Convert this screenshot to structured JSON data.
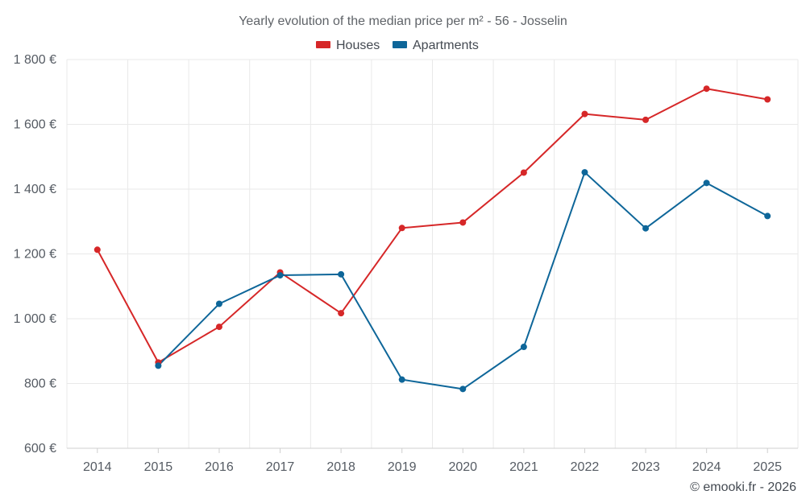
{
  "chart_data": {
    "type": "line",
    "title": "Yearly evolution of the median price per m² - 56 - Josselin",
    "xlabel": "",
    "ylabel": "",
    "ylim": [
      600,
      1800
    ],
    "y_ticks": [
      600,
      800,
      1000,
      1200,
      1400,
      1600,
      1800
    ],
    "y_tick_labels": [
      "600 €",
      "800 €",
      "1 000 €",
      "1 200 €",
      "1 400 €",
      "1 600 €",
      "1 800 €"
    ],
    "categories": [
      "2014",
      "2015",
      "2016",
      "2017",
      "2018",
      "2019",
      "2020",
      "2021",
      "2022",
      "2023",
      "2024",
      "2025"
    ],
    "grid": true,
    "legend_position": "top-center",
    "series": [
      {
        "name": "Houses",
        "color": "#d62728",
        "values": [
          1213,
          865,
          975,
          1143,
          1017,
          1280,
          1297,
          1451,
          1632,
          1614,
          1710,
          1677
        ]
      },
      {
        "name": "Apartments",
        "color": "#0e6699",
        "values": [
          null,
          855,
          1046,
          1134,
          1137,
          812,
          783,
          913,
          1452,
          1279,
          1419,
          1317
        ]
      }
    ]
  },
  "credit": "© emooki.fr - 2026"
}
